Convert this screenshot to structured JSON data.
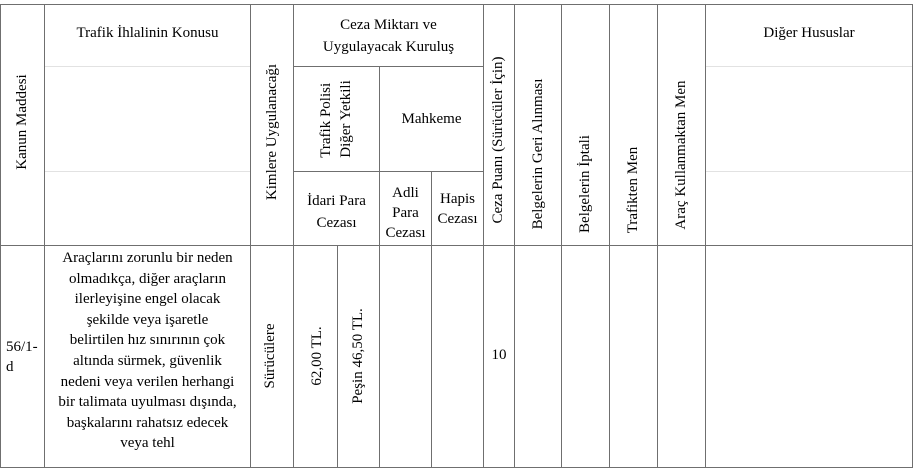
{
  "headers": {
    "kanun_maddesi": "Kanun Maddesi",
    "ihlal_konusu": "Trafik İhlalinin Konusu",
    "kimlere": "Kimlere Uygulanacağı",
    "ceza_miktari": "Ceza Miktarı ve\nUygulayacak Kuruluş",
    "trafik_polisi": "Trafik Polisi\nDiğer Yetkili",
    "mahkeme": "Mahkeme",
    "idari_para": "İdari Para\nCezası",
    "adli_para": "Adli\nPara\nCezası",
    "hapis": "Hapis\nCezası",
    "ceza_puani": "Ceza Puanı (Sürücüler İçin)",
    "belge_geri": "Belgelerin Geri Alınması",
    "belge_iptal": "Belgelerin İptali",
    "trafikten_men": "Trafikten Men",
    "arac_men": "Araç Kullanmaktan Men",
    "diger": "Diğer Hususlar"
  },
  "row": {
    "madde": "56/1-\nd",
    "konu": "Araçlarını zorunlu bir neden\nolmadıkça, diğer araçların\nilerleyişine engel olacak\nşekilde veya işaretle\nbelirtilen hız sınırının çok\naltında sürmek, güvenlik\nnedeni veya verilen herhangi\nbir talimata uyulması dışında,\nbaşkalarını rahatsız edecek\nveya tehl",
    "kimlere": "Sürücülere",
    "idari_tutar": "62,00 TL.",
    "pesin_tutar": "Peşin 46,50 TL.",
    "adli": "",
    "hapis": "",
    "ceza_puani": "10",
    "belge_geri": "",
    "belge_iptal": "",
    "trafikten_men": "",
    "arac_men": "",
    "diger": ""
  }
}
